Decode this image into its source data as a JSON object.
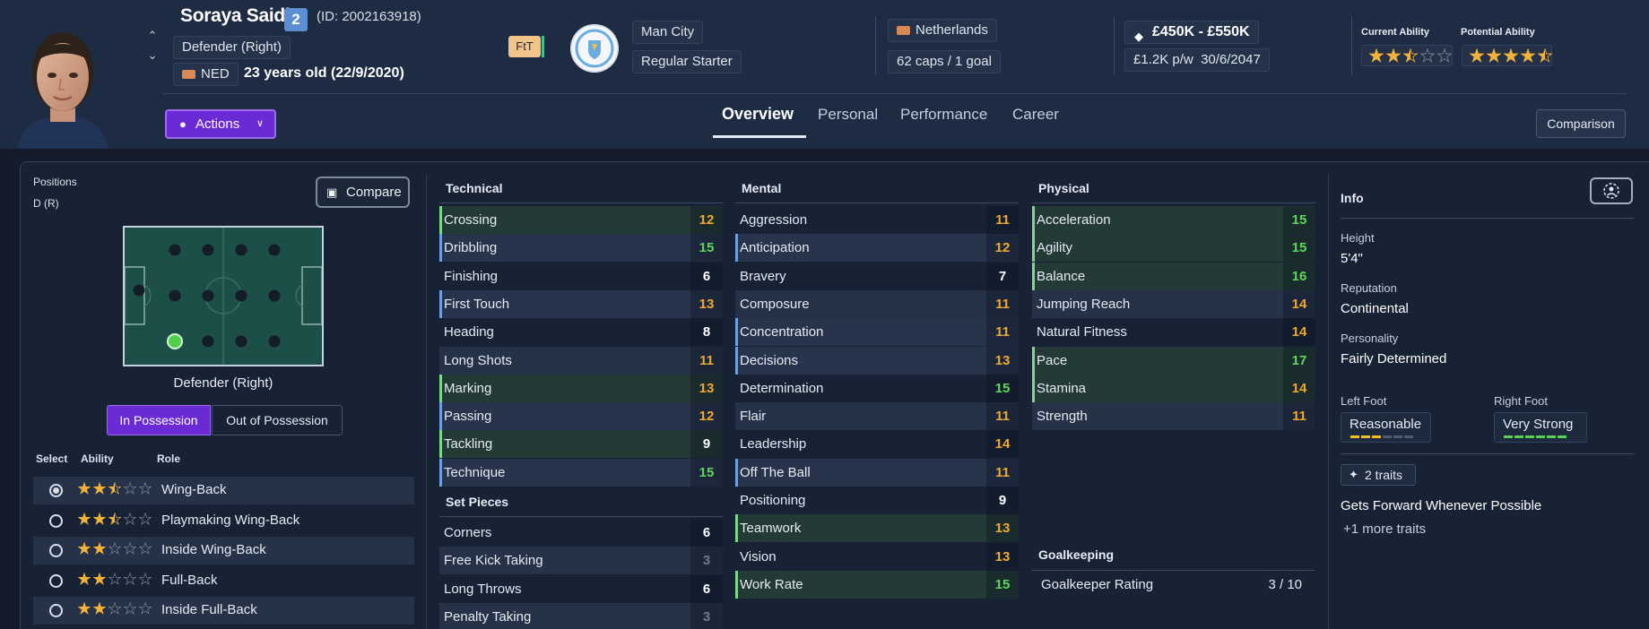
{
  "player": {
    "name": "Soraya Saidi",
    "number": "2",
    "id_text": "(ID: 2002163918)",
    "position": "Defender (Right)",
    "nation_code": "NED",
    "age_text": "23 years old (22/9/2020)",
    "ftt_badge": "FtT"
  },
  "club": {
    "name": "Man City",
    "squad_status": "Regular Starter"
  },
  "nation": {
    "name": "Netherlands",
    "caps": "62 caps / 1 goal"
  },
  "contract": {
    "value": "£450K - £550K",
    "wage": "£1.2K p/w",
    "expiry": "30/6/2047"
  },
  "ability": {
    "current_label": "Current Ability",
    "current_stars": 2.5,
    "potential_label": "Potential Ability",
    "potential_stars": 4.5
  },
  "actions_label": "Actions",
  "tabs": [
    {
      "label": "Overview"
    },
    {
      "label": "Personal"
    },
    {
      "label": "Performance"
    },
    {
      "label": "Career"
    }
  ],
  "comparison_label": "Comparison",
  "positions": {
    "label": "Positions",
    "value": "D (R)",
    "compare_label": "Compare",
    "pitch_caption": "Defender (Right)",
    "in_possession": "In Possession",
    "out_possession": "Out of Possession"
  },
  "roles": {
    "headers": {
      "select": "Select",
      "ability": "Ability",
      "role": "Role"
    },
    "items": [
      {
        "name": "Wing-Back",
        "stars": 2.5,
        "selected": true
      },
      {
        "name": "Playmaking Wing-Back",
        "stars": 2.5,
        "selected": false
      },
      {
        "name": "Inside Wing-Back",
        "stars": 2,
        "selected": false
      },
      {
        "name": "Full-Back",
        "stars": 2,
        "selected": false
      },
      {
        "name": "Inside Full-Back",
        "stars": 2,
        "selected": false
      }
    ]
  },
  "technical": {
    "title": "Technical",
    "items": [
      {
        "name": "Crossing",
        "value": "12"
      },
      {
        "name": "Dribbling",
        "value": "15"
      },
      {
        "name": "Finishing",
        "value": "6"
      },
      {
        "name": "First Touch",
        "value": "13"
      },
      {
        "name": "Heading",
        "value": "8"
      },
      {
        "name": "Long Shots",
        "value": "11"
      },
      {
        "name": "Marking",
        "value": "13"
      },
      {
        "name": "Passing",
        "value": "12"
      },
      {
        "name": "Tackling",
        "value": "9"
      },
      {
        "name": "Technique",
        "value": "15"
      }
    ]
  },
  "set_pieces": {
    "title": "Set Pieces",
    "items": [
      {
        "name": "Corners",
        "value": "6"
      },
      {
        "name": "Free Kick Taking",
        "value": "3"
      },
      {
        "name": "Long Throws",
        "value": "6"
      },
      {
        "name": "Penalty Taking",
        "value": "3"
      }
    ]
  },
  "mental": {
    "title": "Mental",
    "items": [
      {
        "name": "Aggression",
        "value": "11"
      },
      {
        "name": "Anticipation",
        "value": "12"
      },
      {
        "name": "Bravery",
        "value": "7"
      },
      {
        "name": "Composure",
        "value": "11"
      },
      {
        "name": "Concentration",
        "value": "11"
      },
      {
        "name": "Decisions",
        "value": "13"
      },
      {
        "name": "Determination",
        "value": "15"
      },
      {
        "name": "Flair",
        "value": "11"
      },
      {
        "name": "Leadership",
        "value": "14"
      },
      {
        "name": "Off The Ball",
        "value": "11"
      },
      {
        "name": "Positioning",
        "value": "9"
      },
      {
        "name": "Teamwork",
        "value": "13"
      },
      {
        "name": "Vision",
        "value": "13"
      },
      {
        "name": "Work Rate",
        "value": "15"
      }
    ]
  },
  "physical": {
    "title": "Physical",
    "items": [
      {
        "name": "Acceleration",
        "value": "15"
      },
      {
        "name": "Agility",
        "value": "15"
      },
      {
        "name": "Balance",
        "value": "16"
      },
      {
        "name": "Jumping Reach",
        "value": "14"
      },
      {
        "name": "Natural Fitness",
        "value": "14"
      },
      {
        "name": "Pace",
        "value": "17"
      },
      {
        "name": "Stamina",
        "value": "14"
      },
      {
        "name": "Strength",
        "value": "11"
      }
    ]
  },
  "goalkeeping": {
    "title": "Goalkeeping",
    "rating_label": "Goalkeeper Rating",
    "rating_value": "3 / 10"
  },
  "info": {
    "title": "Info",
    "height_label": "Height",
    "height": "5'4\"",
    "reputation_label": "Reputation",
    "reputation": "Continental",
    "personality_label": "Personality",
    "personality": "Fairly Determined",
    "left_foot_label": "Left Foot",
    "left_foot": "Reasonable",
    "left_foot_level": 3,
    "right_foot_label": "Right Foot",
    "right_foot": "Very Strong",
    "right_foot_level": 6,
    "traits_chip": "2 traits",
    "trait_main": "Gets Forward Whenever Possible",
    "trait_more": "+1 more traits"
  },
  "colors": {
    "accent": "#6a2bd4",
    "orange": "#f0a82d",
    "green": "#5fd65a",
    "star": "#f0b23a"
  }
}
